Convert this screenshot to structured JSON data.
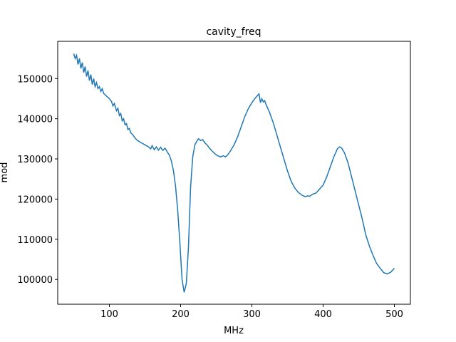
{
  "chart_data": {
    "type": "line",
    "title": "cavity_freq",
    "xlabel": "MHz",
    "ylabel": "mod",
    "x": [
      50,
      52,
      54,
      56,
      58,
      60,
      62,
      64,
      66,
      68,
      70,
      72,
      74,
      76,
      78,
      80,
      82,
      84,
      86,
      88,
      90,
      92,
      95,
      100,
      103,
      105,
      107,
      110,
      112,
      114,
      116,
      118,
      120,
      122,
      124,
      126,
      128,
      130,
      133,
      136,
      140,
      145,
      150,
      155,
      158,
      160,
      163,
      166,
      169,
      172,
      175,
      178,
      181,
      184,
      187,
      190,
      193,
      196,
      199,
      202,
      205,
      208,
      211,
      214,
      217,
      220,
      223,
      225,
      228,
      231,
      234,
      237,
      240,
      244,
      248,
      252,
      256,
      260,
      263,
      266,
      270,
      275,
      280,
      285,
      290,
      295,
      300,
      305,
      310,
      312,
      314,
      316,
      318,
      320,
      325,
      330,
      335,
      340,
      345,
      350,
      355,
      360,
      365,
      370,
      375,
      378,
      381,
      385,
      390,
      395,
      400,
      405,
      410,
      415,
      420,
      423,
      426,
      430,
      435,
      440,
      445,
      450,
      455,
      460,
      465,
      470,
      475,
      480,
      485,
      490,
      495,
      500
    ],
    "series": [
      {
        "name": "cavity_freq",
        "color": "#1f77b4",
        "values": [
          156200,
          155000,
          155800,
          153500,
          155000,
          152500,
          154000,
          151500,
          153000,
          150500,
          152000,
          149500,
          151000,
          148500,
          150000,
          148000,
          149000,
          147500,
          148000,
          146800,
          147500,
          146300,
          145800,
          145000,
          144300,
          143200,
          143800,
          142000,
          142600,
          140800,
          141300,
          139500,
          140000,
          138500,
          138800,
          137300,
          137600,
          136500,
          136000,
          135200,
          134500,
          134000,
          133500,
          133000,
          132500,
          133300,
          132300,
          133000,
          132200,
          132900,
          132100,
          132700,
          131800,
          131000,
          129500,
          127000,
          123000,
          117000,
          109000,
          100000,
          96800,
          99000,
          108000,
          123000,
          130500,
          133500,
          134500,
          135000,
          134600,
          134800,
          134000,
          133500,
          132800,
          132000,
          131300,
          130800,
          130500,
          130800,
          130500,
          131000,
          132000,
          133500,
          135500,
          138000,
          140500,
          142500,
          144000,
          145200,
          146200,
          144000,
          145000,
          144200,
          144500,
          143500,
          141500,
          139000,
          136000,
          133000,
          130000,
          127000,
          124500,
          122800,
          121700,
          121000,
          120600,
          120800,
          120700,
          121200,
          121500,
          122500,
          123500,
          125500,
          128000,
          130500,
          132500,
          133000,
          132700,
          131500,
          129000,
          125500,
          122000,
          118500,
          115000,
          111000,
          108300,
          106000,
          104000,
          102800,
          101700,
          101400,
          101800,
          102800
        ]
      }
    ],
    "xlim": [
      27.5,
      522.5
    ],
    "ylim": [
      93825,
      159275
    ],
    "xticks": [
      100,
      200,
      300,
      400,
      500
    ],
    "yticks": [
      100000,
      110000,
      120000,
      130000,
      140000,
      150000
    ]
  }
}
